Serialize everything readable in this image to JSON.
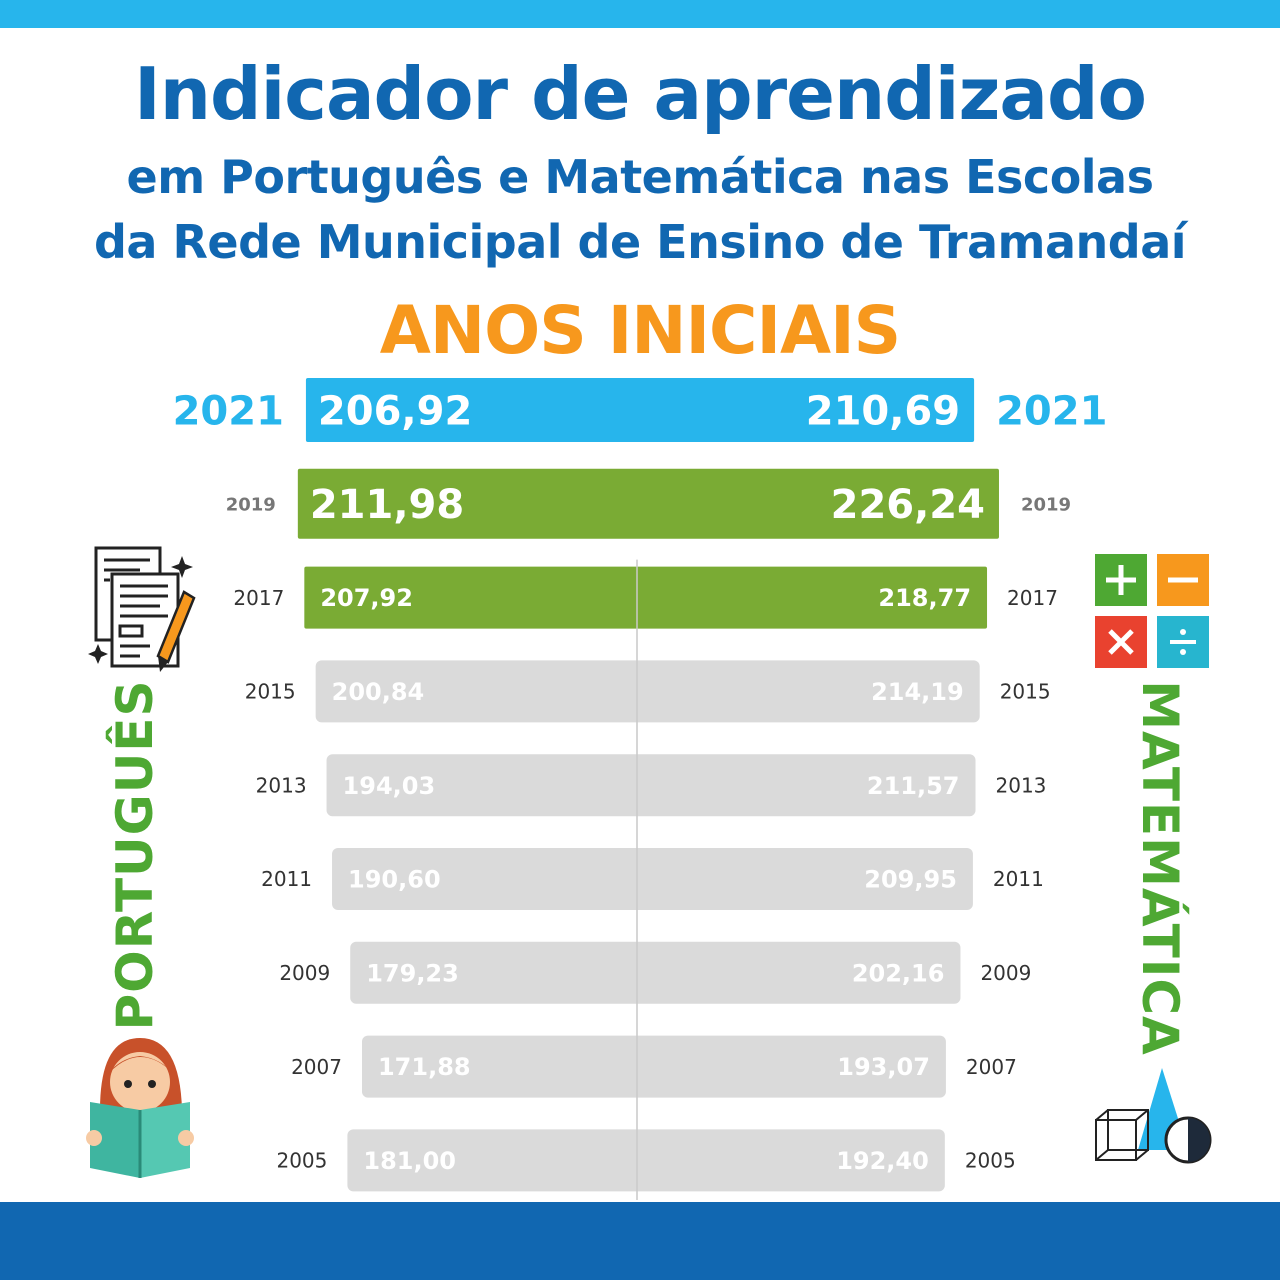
{
  "header": {
    "title": "Indicador de aprendizado",
    "subtitle_line1": "em Português e Matemática nas Escolas",
    "subtitle_line2": "da Rede Municipal de Ensino de Tramandaí",
    "section": "ANOS INICIAIS"
  },
  "side_labels": {
    "left": "PORTUGUÊS",
    "right": "MATEMÁTICA"
  },
  "icons": {
    "left_top": "documents-pencil-icon",
    "left_bottom": "girl-reading-book-icon",
    "right_top": "math-operations-icon",
    "right_bottom": "geometry-shapes-icon"
  },
  "colors": {
    "highlight_2021": "#27b5ec",
    "highlight_2019_2017": "#7aab34",
    "past_years": "#dadada",
    "title": "#1167b1",
    "section": "#f7981d",
    "side_labels": "#4ea833"
  },
  "chart_data": {
    "type": "bar",
    "orientation": "diverging-horizontal",
    "series": [
      {
        "name": "PORTUGUÊS",
        "side": "left"
      },
      {
        "name": "MATEMÁTICA",
        "side": "right"
      }
    ],
    "rows": [
      {
        "year": "2021",
        "portugues": 206.92,
        "matematica": 210.69,
        "portugues_label": "206,92",
        "matematica_label": "210,69",
        "style": "current"
      },
      {
        "year": "2019",
        "portugues": 211.98,
        "matematica": 226.24,
        "portugues_label": "211,98",
        "matematica_label": "226,24",
        "style": "highlight"
      },
      {
        "year": "2017",
        "portugues": 207.92,
        "matematica": 218.77,
        "portugues_label": "207,92",
        "matematica_label": "218,77",
        "style": "highlight"
      },
      {
        "year": "2015",
        "portugues": 200.84,
        "matematica": 214.19,
        "portugues_label": "200,84",
        "matematica_label": "214,19",
        "style": "past"
      },
      {
        "year": "2013",
        "portugues": 194.03,
        "matematica": 211.57,
        "portugues_label": "194,03",
        "matematica_label": "211,57",
        "style": "past"
      },
      {
        "year": "2011",
        "portugues": 190.6,
        "matematica": 209.95,
        "portugues_label": "190,60",
        "matematica_label": "209,95",
        "style": "past"
      },
      {
        "year": "2009",
        "portugues": 179.23,
        "matematica": 202.16,
        "portugues_label": "179,23",
        "matematica_label": "202,16",
        "style": "past"
      },
      {
        "year": "2007",
        "portugues": 171.88,
        "matematica": 193.07,
        "portugues_label": "171,88",
        "matematica_label": "193,07",
        "style": "past"
      },
      {
        "year": "2005",
        "portugues": 181.0,
        "matematica": 192.4,
        "portugues_label": "181,00",
        "matematica_label": "192,40",
        "style": "past"
      }
    ]
  }
}
